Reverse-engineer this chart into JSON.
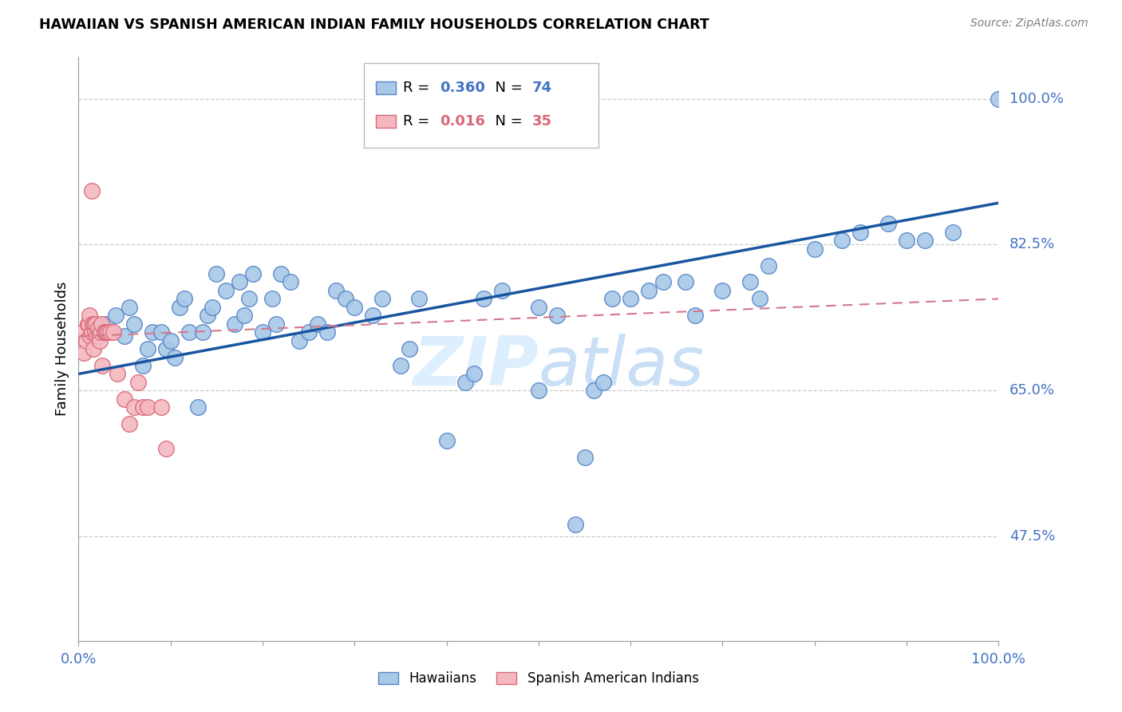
{
  "title": "HAWAIIAN VS SPANISH AMERICAN INDIAN FAMILY HOUSEHOLDS CORRELATION CHART",
  "source": "Source: ZipAtlas.com",
  "ylabel": "Family Households",
  "ytick_labels": [
    "47.5%",
    "65.0%",
    "82.5%",
    "100.0%"
  ],
  "ytick_values": [
    0.475,
    0.65,
    0.825,
    1.0
  ],
  "ymin": 0.35,
  "ymax": 1.05,
  "xmin": 0.0,
  "xmax": 1.0,
  "legend_label1": "Hawaiians",
  "legend_label2": "Spanish American Indians",
  "legend_r1": "0.360",
  "legend_n1": "74",
  "legend_r2": "0.016",
  "legend_n2": "35",
  "blue_color": "#a8c8e8",
  "pink_color": "#f4b8c0",
  "blue_edge": "#5585c5",
  "pink_edge": "#d96878",
  "trend_blue": "#1a56a0",
  "trend_pink": "#d47888",
  "axis_color": "#999999",
  "grid_color": "#cccccc",
  "title_color": "#000000",
  "label_color": "#4472c4",
  "source_color": "#808080",
  "watermark_color": "#ddeeff",
  "blue_x": [
    0.02,
    0.03,
    0.04,
    0.05,
    0.055,
    0.06,
    0.07,
    0.075,
    0.08,
    0.09,
    0.095,
    0.1,
    0.105,
    0.11,
    0.115,
    0.12,
    0.13,
    0.135,
    0.14,
    0.145,
    0.15,
    0.16,
    0.17,
    0.175,
    0.18,
    0.185,
    0.19,
    0.2,
    0.21,
    0.215,
    0.22,
    0.23,
    0.24,
    0.25,
    0.26,
    0.27,
    0.28,
    0.29,
    0.3,
    0.32,
    0.33,
    0.35,
    0.36,
    0.37,
    0.4,
    0.42,
    0.43,
    0.44,
    0.46,
    0.5,
    0.5,
    0.52,
    0.54,
    0.55,
    0.56,
    0.57,
    0.58,
    0.6,
    0.62,
    0.635,
    0.66,
    0.67,
    0.7,
    0.73,
    0.74,
    0.75,
    0.8,
    0.83,
    0.85,
    0.88,
    0.9,
    0.92,
    0.95,
    1.0
  ],
  "blue_y": [
    0.72,
    0.73,
    0.74,
    0.715,
    0.75,
    0.73,
    0.68,
    0.7,
    0.72,
    0.72,
    0.7,
    0.71,
    0.69,
    0.75,
    0.76,
    0.72,
    0.63,
    0.72,
    0.74,
    0.75,
    0.79,
    0.77,
    0.73,
    0.78,
    0.74,
    0.76,
    0.79,
    0.72,
    0.76,
    0.73,
    0.79,
    0.78,
    0.71,
    0.72,
    0.73,
    0.72,
    0.77,
    0.76,
    0.75,
    0.74,
    0.76,
    0.68,
    0.7,
    0.76,
    0.59,
    0.66,
    0.67,
    0.76,
    0.77,
    0.65,
    0.75,
    0.74,
    0.49,
    0.57,
    0.65,
    0.66,
    0.76,
    0.76,
    0.77,
    0.78,
    0.78,
    0.74,
    0.77,
    0.78,
    0.76,
    0.8,
    0.82,
    0.83,
    0.84,
    0.85,
    0.83,
    0.83,
    0.84,
    1.0
  ],
  "pink_x": [
    0.004,
    0.006,
    0.008,
    0.01,
    0.011,
    0.012,
    0.013,
    0.014,
    0.015,
    0.016,
    0.017,
    0.018,
    0.019,
    0.02,
    0.021,
    0.022,
    0.023,
    0.024,
    0.025,
    0.026,
    0.028,
    0.03,
    0.032,
    0.034,
    0.038,
    0.042,
    0.05,
    0.055,
    0.06,
    0.065,
    0.07,
    0.075,
    0.09,
    0.095,
    0.014
  ],
  "pink_y": [
    0.72,
    0.695,
    0.71,
    0.73,
    0.73,
    0.74,
    0.715,
    0.72,
    0.73,
    0.7,
    0.73,
    0.72,
    0.73,
    0.715,
    0.725,
    0.715,
    0.71,
    0.72,
    0.73,
    0.68,
    0.72,
    0.72,
    0.72,
    0.72,
    0.72,
    0.67,
    0.64,
    0.61,
    0.63,
    0.66,
    0.63,
    0.63,
    0.63,
    0.58,
    0.89
  ],
  "blue_trend_x0": 0.0,
  "blue_trend_y0": 0.67,
  "blue_trend_x1": 1.0,
  "blue_trend_y1": 0.875,
  "pink_trend_x0": 0.0,
  "pink_trend_y0": 0.715,
  "pink_trend_x1": 1.0,
  "pink_trend_y1": 0.76
}
